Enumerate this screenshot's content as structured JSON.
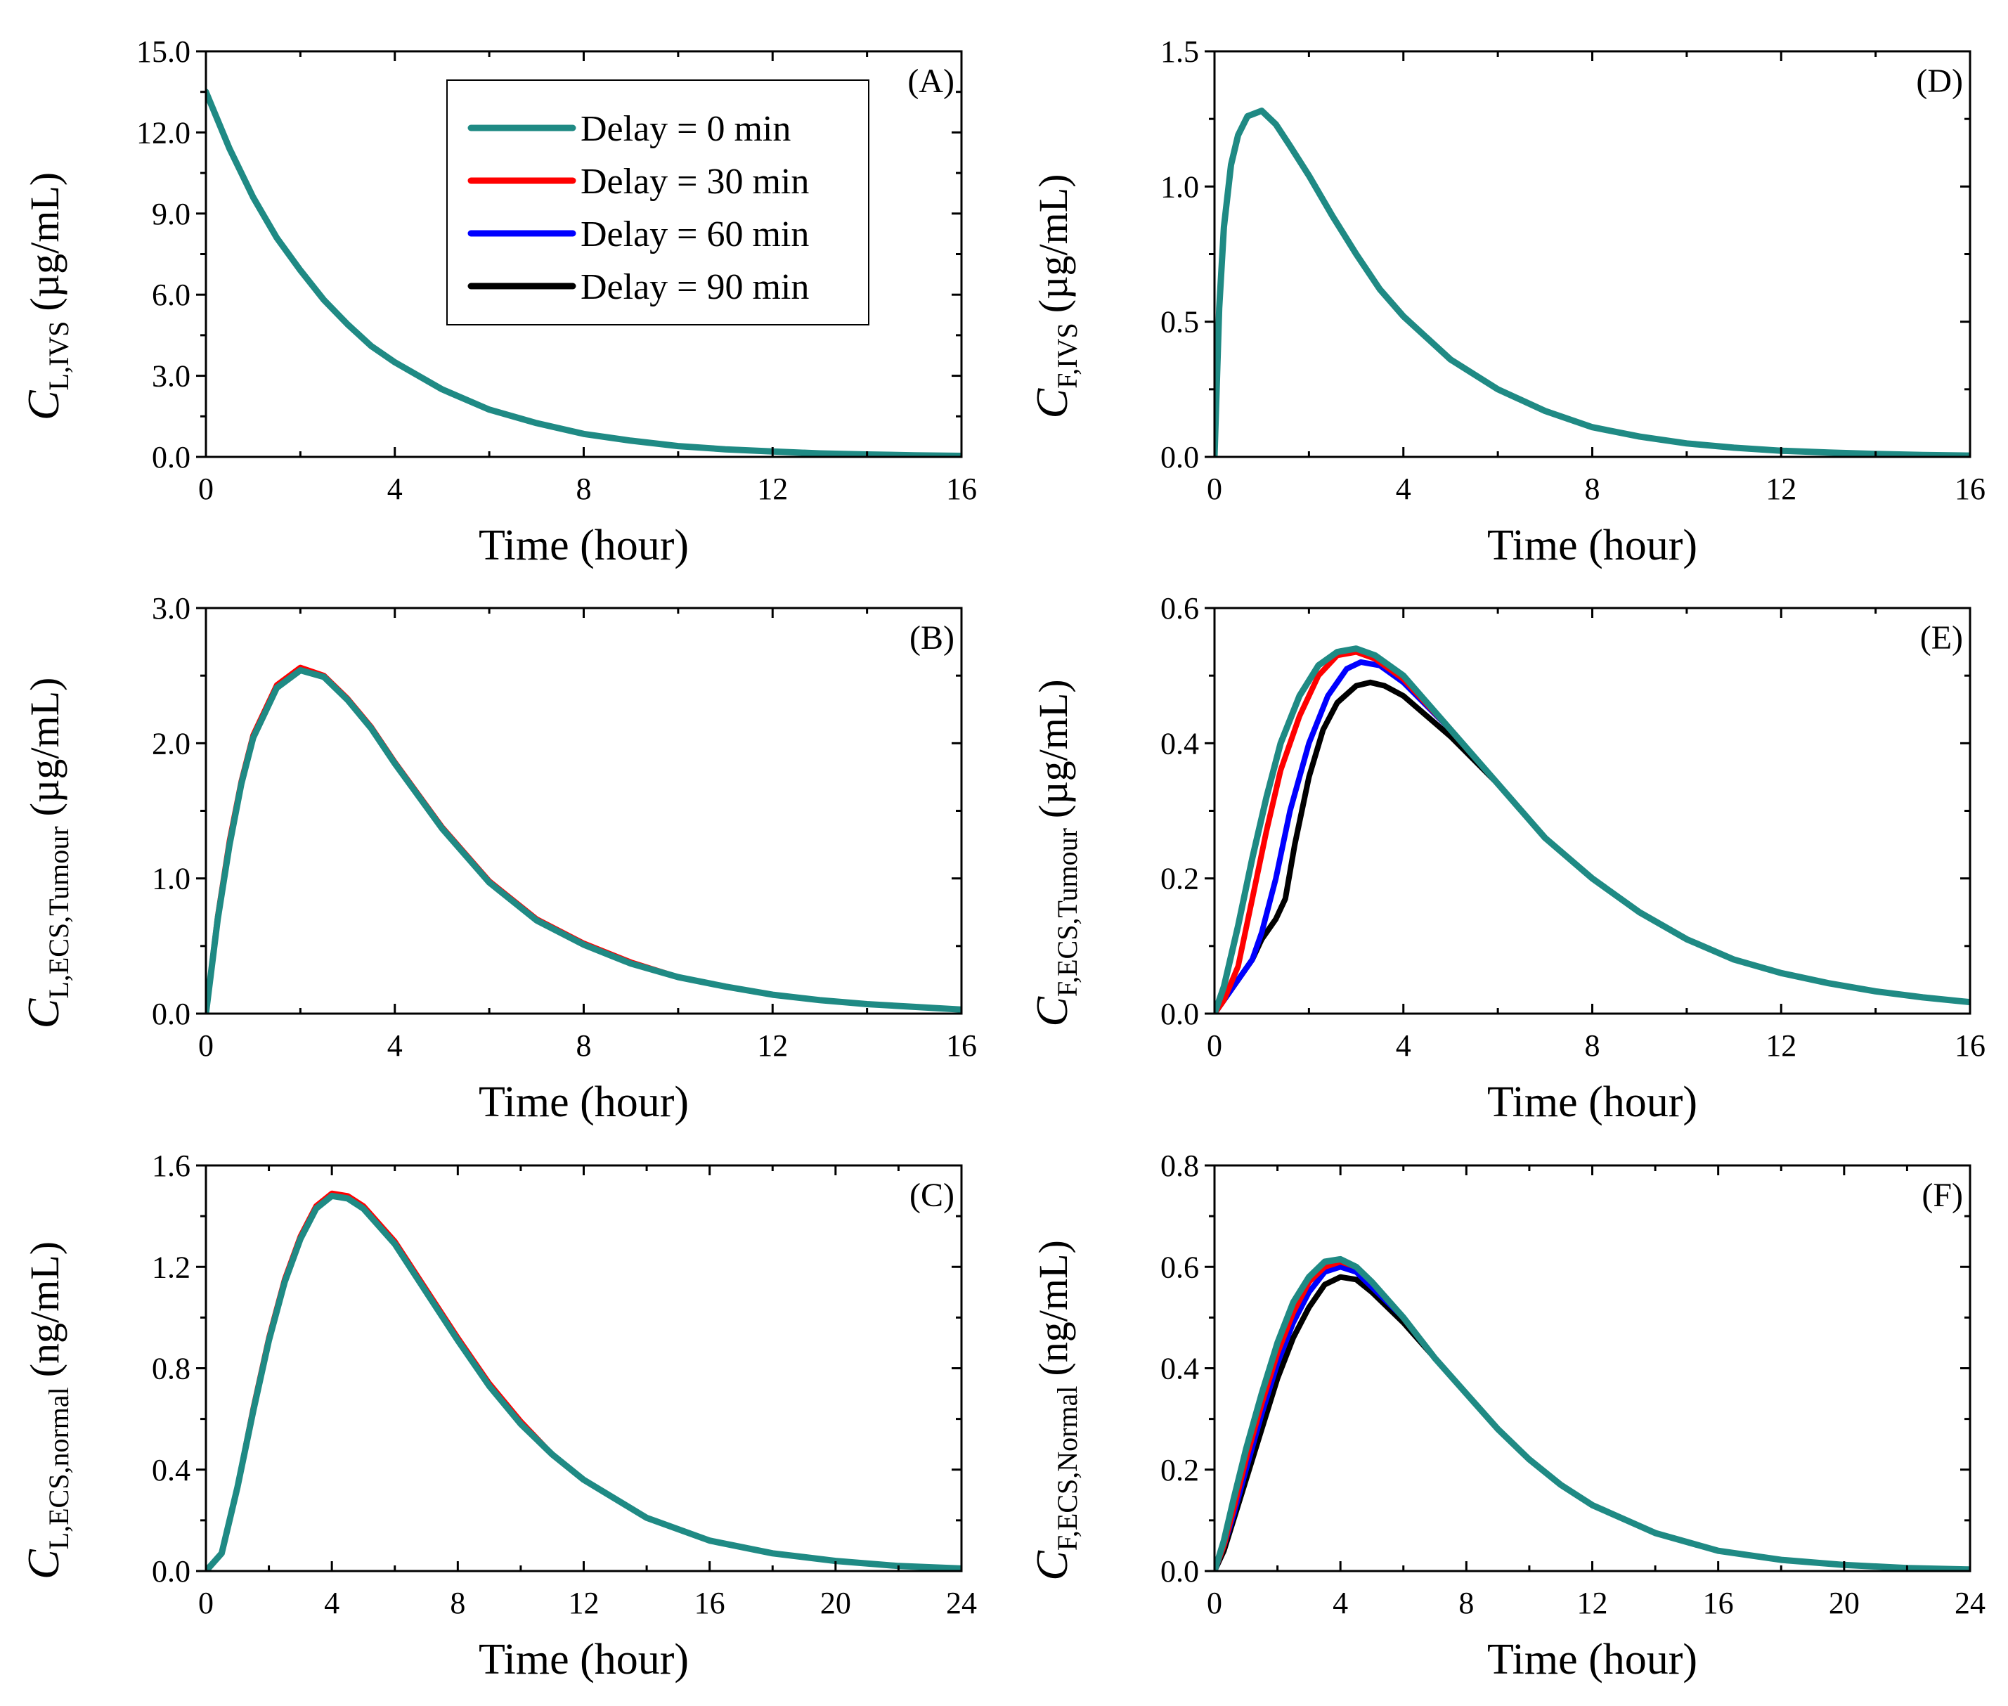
{
  "colors": {
    "delay_0": "#1f8a84",
    "delay_30": "#ff0000",
    "delay_60": "#0000ff",
    "delay_90": "#000000"
  },
  "legend": {
    "entries": [
      {
        "series": "delay_0",
        "label": "Delay = 0 min"
      },
      {
        "series": "delay_30",
        "label": "Delay = 30 min"
      },
      {
        "series": "delay_60",
        "label": "Delay = 60 min"
      },
      {
        "series": "delay_90",
        "label": "Delay = 90 min"
      }
    ],
    "placement": "top-right of panel A"
  },
  "chart_data": [
    {
      "id": "A",
      "panel_label": "(A)",
      "type": "line",
      "xlabel": "Time (hour)",
      "ylabel_main": "C",
      "ylabel_sub": "L,IVS",
      "ylabel_unit": "(µg/mL)",
      "xlim": [
        0,
        16
      ],
      "ylim": [
        0,
        15
      ],
      "xticks": [
        "0",
        "4",
        "8",
        "12",
        "16"
      ],
      "yticks": [
        "0.0",
        "3.0",
        "6.0",
        "9.0",
        "12.0",
        "15.0"
      ],
      "series": [
        {
          "key": "delay_0",
          "x": [
            0,
            0.5,
            1,
            1.5,
            2,
            2.5,
            3,
            3.5,
            4,
            5,
            6,
            7,
            8,
            9,
            10,
            11,
            12,
            13,
            14,
            15,
            16
          ],
          "y": [
            13.5,
            11.4,
            9.6,
            8.1,
            6.9,
            5.8,
            4.9,
            4.1,
            3.5,
            2.5,
            1.75,
            1.25,
            0.85,
            0.6,
            0.4,
            0.28,
            0.2,
            0.13,
            0.09,
            0.06,
            0.04
          ]
        }
      ]
    },
    {
      "id": "B",
      "panel_label": "(B)",
      "type": "line",
      "xlabel": "Time (hour)",
      "ylabel_main": "C",
      "ylabel_sub": "L,ECS,Tumour",
      "ylabel_unit": "(µg/mL)",
      "xlim": [
        0,
        16
      ],
      "ylim": [
        0,
        3
      ],
      "xticks": [
        "0",
        "4",
        "8",
        "12",
        "16"
      ],
      "yticks": [
        "0.0",
        "1.0",
        "2.0",
        "3.0"
      ],
      "series": [
        {
          "key": "delay_30",
          "x": [
            0,
            0.25,
            0.5,
            0.75,
            1,
            1.5,
            2,
            2.5,
            3,
            3.5,
            4,
            5,
            6,
            7,
            8,
            9,
            10,
            11,
            12,
            13,
            14,
            15,
            16
          ],
          "y": [
            0,
            0.72,
            1.28,
            1.72,
            2.06,
            2.43,
            2.56,
            2.5,
            2.33,
            2.12,
            1.86,
            1.38,
            0.98,
            0.7,
            0.52,
            0.38,
            0.27,
            0.2,
            0.14,
            0.1,
            0.07,
            0.05,
            0.03
          ]
        },
        {
          "key": "delay_0",
          "x": [
            0,
            0.25,
            0.5,
            0.75,
            1,
            1.5,
            2,
            2.5,
            3,
            3.5,
            4,
            5,
            6,
            7,
            8,
            9,
            10,
            11,
            12,
            13,
            14,
            15,
            16
          ],
          "y": [
            0,
            0.7,
            1.25,
            1.7,
            2.04,
            2.41,
            2.54,
            2.49,
            2.32,
            2.11,
            1.85,
            1.37,
            0.97,
            0.69,
            0.51,
            0.37,
            0.27,
            0.2,
            0.14,
            0.1,
            0.07,
            0.05,
            0.03
          ]
        }
      ]
    },
    {
      "id": "C",
      "panel_label": "(C)",
      "type": "line",
      "xlabel": "Time (hour)",
      "ylabel_main": "C",
      "ylabel_sub": "L,ECS,normal",
      "ylabel_unit": "(ng/mL)",
      "xlim": [
        0,
        24
      ],
      "ylim": [
        0,
        1.6
      ],
      "xticks": [
        "0",
        "4",
        "8",
        "12",
        "16",
        "20",
        "24"
      ],
      "yticks": [
        "0.0",
        "0.4",
        "0.8",
        "1.2",
        "1.6"
      ],
      "series": [
        {
          "key": "delay_30",
          "x": [
            0,
            0.5,
            1,
            1.5,
            2,
            2.5,
            3,
            3.5,
            4,
            4.5,
            5,
            6,
            7,
            8,
            9,
            10,
            11,
            12,
            14,
            16,
            18,
            20,
            22,
            24
          ],
          "y": [
            0,
            0.07,
            0.33,
            0.64,
            0.92,
            1.15,
            1.32,
            1.44,
            1.49,
            1.48,
            1.44,
            1.3,
            1.11,
            0.92,
            0.74,
            0.59,
            0.46,
            0.36,
            0.21,
            0.12,
            0.07,
            0.04,
            0.02,
            0.01
          ]
        },
        {
          "key": "delay_0",
          "x": [
            0,
            0.5,
            1,
            1.5,
            2,
            2.5,
            3,
            3.5,
            4,
            4.5,
            5,
            6,
            7,
            8,
            9,
            10,
            11,
            12,
            14,
            16,
            18,
            20,
            22,
            24
          ],
          "y": [
            0,
            0.07,
            0.33,
            0.63,
            0.91,
            1.14,
            1.31,
            1.43,
            1.48,
            1.47,
            1.43,
            1.29,
            1.1,
            0.91,
            0.73,
            0.58,
            0.46,
            0.36,
            0.21,
            0.12,
            0.07,
            0.04,
            0.02,
            0.01
          ]
        }
      ]
    },
    {
      "id": "D",
      "panel_label": "(D)",
      "type": "line",
      "xlabel": "Time (hour)",
      "ylabel_main": "C",
      "ylabel_sub": "F,IVS",
      "ylabel_unit": "(µg/mL)",
      "xlim": [
        0,
        16
      ],
      "ylim": [
        0,
        1.5
      ],
      "xticks": [
        "0",
        "4",
        "8",
        "12",
        "16"
      ],
      "yticks": [
        "0.0",
        "0.5",
        "1.0",
        "1.5"
      ],
      "series": [
        {
          "key": "delay_0",
          "x": [
            0,
            0.1,
            0.2,
            0.35,
            0.5,
            0.7,
            1,
            1.3,
            1.6,
            2,
            2.5,
            3,
            3.5,
            4,
            5,
            6,
            7,
            8,
            9,
            10,
            11,
            12,
            13,
            14,
            15,
            16
          ],
          "y": [
            0,
            0.55,
            0.85,
            1.08,
            1.19,
            1.26,
            1.28,
            1.23,
            1.15,
            1.04,
            0.89,
            0.75,
            0.62,
            0.52,
            0.36,
            0.25,
            0.17,
            0.11,
            0.075,
            0.05,
            0.034,
            0.023,
            0.016,
            0.011,
            0.007,
            0.005
          ]
        }
      ]
    },
    {
      "id": "E",
      "panel_label": "(E)",
      "type": "line",
      "xlabel": "Time (hour)",
      "ylabel_main": "C",
      "ylabel_sub": "F,ECS,Tumour",
      "ylabel_unit": "(µg/mL)",
      "xlim": [
        0,
        16
      ],
      "ylim": [
        0,
        0.6
      ],
      "xticks": [
        "0",
        "4",
        "8",
        "12",
        "16"
      ],
      "yticks": [
        "0.0",
        "0.2",
        "0.4",
        "0.6"
      ],
      "series": [
        {
          "key": "delay_90",
          "x": [
            0,
            0.2,
            0.5,
            0.8,
            1,
            1.3,
            1.5,
            1.7,
            2,
            2.3,
            2.6,
            3,
            3.3,
            3.6,
            4,
            5,
            6,
            7,
            8,
            9,
            10,
            11,
            12,
            13,
            14,
            15,
            16
          ],
          "y": [
            0,
            0.02,
            0.05,
            0.08,
            0.11,
            0.14,
            0.17,
            0.25,
            0.35,
            0.42,
            0.46,
            0.485,
            0.49,
            0.485,
            0.47,
            0.41,
            0.34,
            0.26,
            0.2,
            0.15,
            0.11,
            0.08,
            0.06,
            0.045,
            0.033,
            0.024,
            0.017
          ]
        },
        {
          "key": "delay_60",
          "x": [
            0,
            0.2,
            0.5,
            0.8,
            1,
            1.3,
            1.6,
            2,
            2.4,
            2.8,
            3.1,
            3.5,
            4,
            5,
            6,
            7,
            8,
            9,
            10,
            11,
            12,
            13,
            14,
            15,
            16
          ],
          "y": [
            0,
            0.02,
            0.05,
            0.08,
            0.12,
            0.2,
            0.3,
            0.4,
            0.47,
            0.51,
            0.52,
            0.515,
            0.49,
            0.42,
            0.34,
            0.26,
            0.2,
            0.15,
            0.11,
            0.08,
            0.06,
            0.045,
            0.033,
            0.024,
            0.017
          ]
        },
        {
          "key": "delay_30",
          "x": [
            0,
            0.2,
            0.5,
            0.8,
            1.1,
            1.4,
            1.8,
            2.2,
            2.6,
            3,
            3.4,
            4,
            5,
            6,
            7,
            8,
            9,
            10,
            11,
            12,
            13,
            14,
            15,
            16
          ],
          "y": [
            0,
            0.02,
            0.07,
            0.17,
            0.27,
            0.36,
            0.44,
            0.5,
            0.53,
            0.535,
            0.525,
            0.495,
            0.42,
            0.34,
            0.26,
            0.2,
            0.15,
            0.11,
            0.08,
            0.06,
            0.045,
            0.033,
            0.024,
            0.017
          ]
        },
        {
          "key": "delay_0",
          "x": [
            0,
            0.2,
            0.5,
            0.8,
            1.1,
            1.4,
            1.8,
            2.2,
            2.6,
            3,
            3.4,
            4,
            5,
            6,
            7,
            8,
            9,
            10,
            11,
            12,
            13,
            14,
            15,
            16
          ],
          "y": [
            0,
            0.04,
            0.13,
            0.23,
            0.32,
            0.4,
            0.47,
            0.515,
            0.535,
            0.54,
            0.53,
            0.5,
            0.42,
            0.34,
            0.26,
            0.2,
            0.15,
            0.11,
            0.08,
            0.06,
            0.045,
            0.033,
            0.024,
            0.017
          ]
        }
      ]
    },
    {
      "id": "F",
      "panel_label": "(F)",
      "type": "line",
      "xlabel": "Time (hour)",
      "ylabel_main": "C",
      "ylabel_sub": "F,ECS,Normal",
      "ylabel_unit": "(ng/mL)",
      "xlim": [
        0,
        24
      ],
      "ylim": [
        0,
        0.8
      ],
      "xticks": [
        "0",
        "4",
        "8",
        "12",
        "16",
        "20",
        "24"
      ],
      "yticks": [
        "0.0",
        "0.2",
        "0.4",
        "0.6",
        "0.8"
      ],
      "series": [
        {
          "key": "delay_90",
          "x": [
            0,
            0.3,
            0.6,
            1,
            1.5,
            2,
            2.5,
            3,
            3.5,
            4,
            4.5,
            5,
            6,
            7,
            8,
            9,
            10,
            11,
            12,
            14,
            16,
            18,
            20,
            22,
            24
          ],
          "y": [
            0,
            0.04,
            0.1,
            0.18,
            0.28,
            0.38,
            0.46,
            0.52,
            0.565,
            0.58,
            0.575,
            0.55,
            0.49,
            0.42,
            0.35,
            0.28,
            0.22,
            0.17,
            0.13,
            0.075,
            0.04,
            0.022,
            0.012,
            0.006,
            0.003
          ]
        },
        {
          "key": "delay_60",
          "x": [
            0,
            0.3,
            0.6,
            1,
            1.5,
            2,
            2.5,
            3,
            3.5,
            4,
            4.5,
            5,
            6,
            7,
            8,
            9,
            10,
            11,
            12,
            14,
            16,
            18,
            20,
            22,
            24
          ],
          "y": [
            0,
            0.05,
            0.11,
            0.2,
            0.31,
            0.41,
            0.49,
            0.55,
            0.59,
            0.6,
            0.59,
            0.56,
            0.5,
            0.42,
            0.35,
            0.28,
            0.22,
            0.17,
            0.13,
            0.075,
            0.04,
            0.022,
            0.012,
            0.006,
            0.003
          ]
        },
        {
          "key": "delay_30",
          "x": [
            0,
            0.3,
            0.6,
            1,
            1.5,
            2,
            2.5,
            3,
            3.5,
            4,
            4.5,
            5,
            6,
            7,
            8,
            9,
            10,
            11,
            12,
            14,
            16,
            18,
            20,
            22,
            24
          ],
          "y": [
            0,
            0.05,
            0.12,
            0.22,
            0.33,
            0.43,
            0.51,
            0.57,
            0.6,
            0.61,
            0.6,
            0.57,
            0.5,
            0.42,
            0.35,
            0.28,
            0.22,
            0.17,
            0.13,
            0.075,
            0.04,
            0.022,
            0.012,
            0.006,
            0.003
          ]
        },
        {
          "key": "delay_0",
          "x": [
            0,
            0.3,
            0.6,
            1,
            1.5,
            2,
            2.5,
            3,
            3.5,
            4,
            4.5,
            5,
            6,
            7,
            8,
            9,
            10,
            11,
            12,
            14,
            16,
            18,
            20,
            22,
            24
          ],
          "y": [
            0,
            0.06,
            0.14,
            0.24,
            0.35,
            0.45,
            0.53,
            0.58,
            0.61,
            0.615,
            0.6,
            0.57,
            0.5,
            0.42,
            0.35,
            0.28,
            0.22,
            0.17,
            0.13,
            0.075,
            0.04,
            0.022,
            0.012,
            0.006,
            0.003
          ]
        }
      ]
    }
  ]
}
